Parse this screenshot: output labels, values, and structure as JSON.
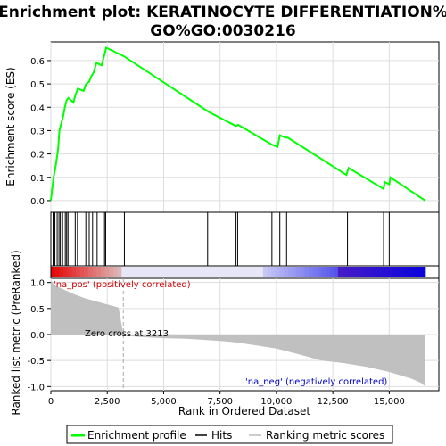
{
  "chart_data": {
    "type": "line",
    "title_line1": "Enrichment plot: KERATINOCYTE DIFFERENTIATION%",
    "title_line2": "GO%GO:0030216",
    "top_panel": {
      "ylabel": "Enrichment score (ES)",
      "ylim": [
        -0.05,
        0.68
      ],
      "yticks": [
        "0.0",
        "0.1",
        "0.2",
        "0.3",
        "0.4",
        "0.5",
        "0.6"
      ],
      "ytick_values": [
        0.0,
        0.1,
        0.2,
        0.3,
        0.4,
        0.5,
        0.6
      ],
      "series_name": "Enrichment profile",
      "color": "#00ff00",
      "points": [
        [
          0,
          0.0
        ],
        [
          60,
          0.05
        ],
        [
          120,
          0.1
        ],
        [
          180,
          0.13
        ],
        [
          250,
          0.17
        ],
        [
          320,
          0.22
        ],
        [
          380,
          0.3
        ],
        [
          460,
          0.33
        ],
        [
          540,
          0.36
        ],
        [
          620,
          0.4
        ],
        [
          700,
          0.43
        ],
        [
          780,
          0.44
        ],
        [
          1000,
          0.42
        ],
        [
          1080,
          0.45
        ],
        [
          1200,
          0.48
        ],
        [
          1450,
          0.47
        ],
        [
          1560,
          0.5
        ],
        [
          1700,
          0.51
        ],
        [
          1780,
          0.53
        ],
        [
          1900,
          0.55
        ],
        [
          2020,
          0.59
        ],
        [
          2250,
          0.58
        ],
        [
          2360,
          0.62
        ],
        [
          2450,
          0.655
        ],
        [
          3213,
          0.62
        ],
        [
          7000,
          0.38
        ],
        [
          8200,
          0.32
        ],
        [
          8300,
          0.325
        ],
        [
          9800,
          0.24
        ],
        [
          10050,
          0.23
        ],
        [
          10150,
          0.28
        ],
        [
          10400,
          0.27
        ],
        [
          10500,
          0.27
        ],
        [
          13100,
          0.11
        ],
        [
          13200,
          0.14
        ],
        [
          14750,
          0.05
        ],
        [
          14800,
          0.08
        ],
        [
          15000,
          0.07
        ],
        [
          15050,
          0.1
        ],
        [
          16600,
          0.0
        ]
      ]
    },
    "hits": [
      100,
      180,
      280,
      360,
      420,
      520,
      640,
      700,
      760,
      1080,
      1180,
      1550,
      1700,
      1850,
      2050,
      2380,
      2430,
      3260,
      6950,
      8200,
      8280,
      9800,
      10150,
      10450,
      13150,
      14750,
      15000
    ],
    "bottom_panel": {
      "ylabel": "Ranked list metric (PreRanked)",
      "xlabel": "Rank in Ordered Dataset",
      "ylim": [
        -1.08,
        1.08
      ],
      "yticks": [
        "1.0",
        "0.5",
        "0.0",
        "-0.5",
        "-1.0"
      ],
      "ytick_values": [
        1.0,
        0.5,
        0.0,
        -0.5,
        -1.0
      ],
      "metric_profile": [
        [
          0,
          1.05
        ],
        [
          150,
          0.95
        ],
        [
          500,
          0.88
        ],
        [
          1000,
          0.78
        ],
        [
          1500,
          0.7
        ],
        [
          2000,
          0.64
        ],
        [
          2500,
          0.58
        ],
        [
          3000,
          0.52
        ],
        [
          3213,
          0.0
        ],
        [
          3300,
          -0.02
        ],
        [
          4000,
          -0.05
        ],
        [
          5000,
          -0.07
        ],
        [
          6000,
          -0.08
        ],
        [
          7000,
          -0.11
        ],
        [
          8000,
          -0.14
        ],
        [
          9000,
          -0.2
        ],
        [
          10000,
          -0.27
        ],
        [
          11000,
          -0.38
        ],
        [
          12000,
          -0.5
        ],
        [
          13000,
          -0.55
        ],
        [
          14000,
          -0.62
        ],
        [
          15000,
          -0.72
        ],
        [
          16000,
          -0.85
        ],
        [
          16400,
          -0.93
        ],
        [
          16600,
          -1.0
        ]
      ],
      "pos_label": "'na_pos' (positively correlated)",
      "neg_label": "'na_neg' (negatively correlated)",
      "zero_cross_label": "Zero cross at 3213",
      "zero_cross": 3213
    },
    "xlim": [
      0,
      17200
    ],
    "x_max_rank": 16600,
    "xticks": [
      "0",
      "2,500",
      "5,000",
      "7,500",
      "10,000",
      "12,500",
      "15,000"
    ],
    "xtick_values": [
      0,
      2500,
      5000,
      7500,
      10000,
      12500,
      15000
    ],
    "legend": {
      "items": [
        "Enrichment profile",
        "Hits",
        "Ranking metric scores"
      ]
    }
  }
}
